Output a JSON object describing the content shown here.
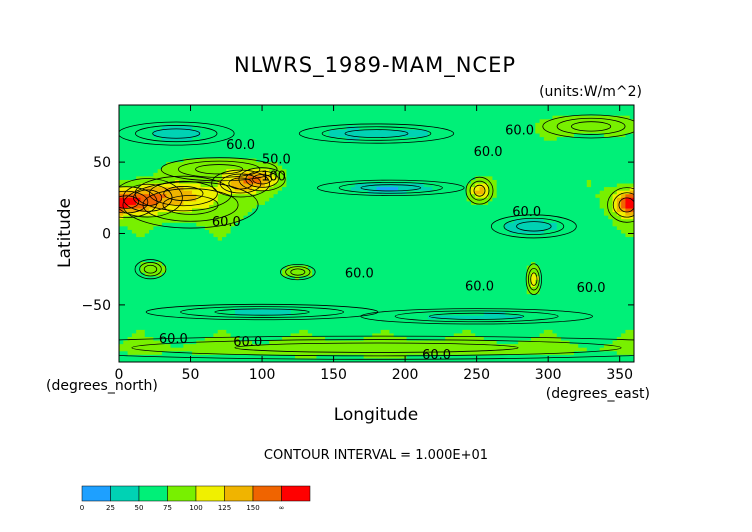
{
  "chart_data": {
    "type": "heatmap",
    "title": "NLWRS_1989-MAM_NCEP",
    "units_label": "(units:W/m^2)",
    "xlabel": "Longitude",
    "ylabel": "Latitude",
    "x_unit_label": "(degrees_east)",
    "y_unit_label": "(degrees_north)",
    "xlim": [
      0,
      360
    ],
    "ylim": [
      -90,
      90
    ],
    "x_ticks": [
      0,
      50,
      100,
      150,
      200,
      250,
      300,
      350
    ],
    "y_ticks": [
      -50,
      0,
      50
    ],
    "contour_interval_text": "CONTOUR INTERVAL = 1.000E+01",
    "contour_labels": [
      {
        "text": "60.0",
        "x": 85,
        "y": 62
      },
      {
        "text": "50.0",
        "x": 110,
        "y": 52
      },
      {
        "text": "100",
        "x": 108,
        "y": 40
      },
      {
        "text": "60.0",
        "x": 75,
        "y": 8
      },
      {
        "text": "60.0",
        "x": 258,
        "y": 57
      },
      {
        "text": "60.0",
        "x": 280,
        "y": 72
      },
      {
        "text": "60.0",
        "x": 285,
        "y": 15
      },
      {
        "text": "60.0",
        "x": 168,
        "y": -28
      },
      {
        "text": "60.0",
        "x": 252,
        "y": -37
      },
      {
        "text": "60.0",
        "x": 330,
        "y": -38
      },
      {
        "text": "60.0",
        "x": 38,
        "y": -74
      },
      {
        "text": "60.0",
        "x": 90,
        "y": -76
      },
      {
        "text": "60.0",
        "x": 222,
        "y": -85
      }
    ],
    "colorbar": {
      "levels": [
        0,
        25,
        50,
        75,
        100,
        125,
        150,
        "∞"
      ],
      "colors": [
        "#1ea0ff",
        "#00d2b4",
        "#00f078",
        "#78f000",
        "#f0f000",
        "#f0b400",
        "#f06400",
        "#ff0000"
      ]
    },
    "field_blobs": [
      {
        "x": 5,
        "y": 22,
        "rx": 16,
        "ry": 8,
        "v": 140
      },
      {
        "x": 20,
        "y": 25,
        "rx": 18,
        "ry": 10,
        "v": 120
      },
      {
        "x": 45,
        "y": 28,
        "rx": 25,
        "ry": 9,
        "v": 110
      },
      {
        "x": 85,
        "y": 35,
        "rx": 15,
        "ry": 7,
        "v": 135
      },
      {
        "x": 100,
        "y": 38,
        "rx": 12,
        "ry": 6,
        "v": 125
      },
      {
        "x": 70,
        "y": 45,
        "rx": 30,
        "ry": 6,
        "v": 95
      },
      {
        "x": 50,
        "y": 20,
        "rx": 35,
        "ry": 12,
        "v": 95
      },
      {
        "x": 252,
        "y": 30,
        "rx": 7,
        "ry": 7,
        "v": 135
      },
      {
        "x": 355,
        "y": 20,
        "rx": 10,
        "ry": 9,
        "v": 135
      },
      {
        "x": 125,
        "y": -27,
        "rx": 9,
        "ry": 4,
        "v": 100
      },
      {
        "x": 22,
        "y": -25,
        "rx": 8,
        "ry": 5,
        "v": 95
      },
      {
        "x": 290,
        "y": -32,
        "rx": 4,
        "ry": 8,
        "v": 120
      },
      {
        "x": 330,
        "y": 75,
        "rx": 25,
        "ry": 6,
        "v": 95
      },
      {
        "x": 190,
        "y": 32,
        "rx": 38,
        "ry": 4,
        "v": 25
      },
      {
        "x": 290,
        "y": 5,
        "rx": 22,
        "ry": 6,
        "v": 30
      },
      {
        "x": 180,
        "y": 70,
        "rx": 40,
        "ry": 5,
        "v": 35
      },
      {
        "x": 40,
        "y": 70,
        "rx": 30,
        "ry": 6,
        "v": 40
      },
      {
        "x": 100,
        "y": -55,
        "rx": 60,
        "ry": 4,
        "v": 45
      },
      {
        "x": 250,
        "y": -58,
        "rx": 60,
        "ry": 4,
        "v": 45
      },
      {
        "x": 180,
        "y": -80,
        "rx": 180,
        "ry": 6,
        "v": 85
      }
    ]
  }
}
